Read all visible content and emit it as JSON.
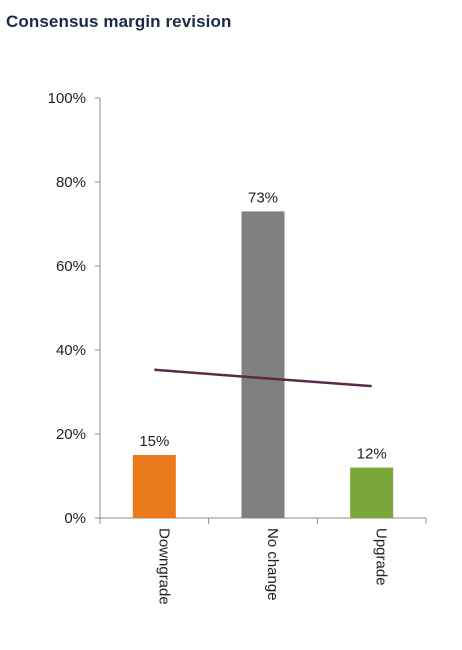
{
  "chart_data": {
    "type": "bar",
    "title": "Consensus margin revision",
    "categories": [
      "Downgrade",
      "No change",
      "Upgrade"
    ],
    "values": [
      15,
      73,
      12
    ],
    "data_labels": [
      "15%",
      "73%",
      "12%"
    ],
    "colors": [
      "#ea7a1c",
      "#808080",
      "#7aa63a"
    ],
    "yticks": [
      "0%",
      "20%",
      "40%",
      "60%",
      "80%",
      "100%"
    ],
    "ylim": [
      0,
      100
    ],
    "trend_line": {
      "color": "#5a2a4a",
      "values": [
        35.3,
        33.3,
        31.4
      ]
    },
    "grid": false,
    "legend": "none"
  }
}
